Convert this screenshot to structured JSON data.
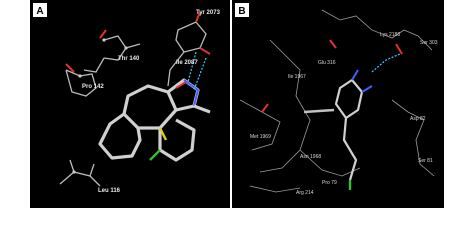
{
  "panels": [
    {
      "label": "A",
      "residues": [
        "Tyr 2073",
        "Thr 140",
        "Ile 2087",
        "Pro 142",
        "Leu 116"
      ]
    },
    {
      "label": "B",
      "residues": [
        "Lys 2188",
        "Ser 303",
        "Glu 316",
        "Ile 1967",
        "Met 1969",
        "Asn 1968",
        "Asp 82",
        "Arg 214",
        "Pro 79",
        "Ser 81"
      ]
    }
  ]
}
